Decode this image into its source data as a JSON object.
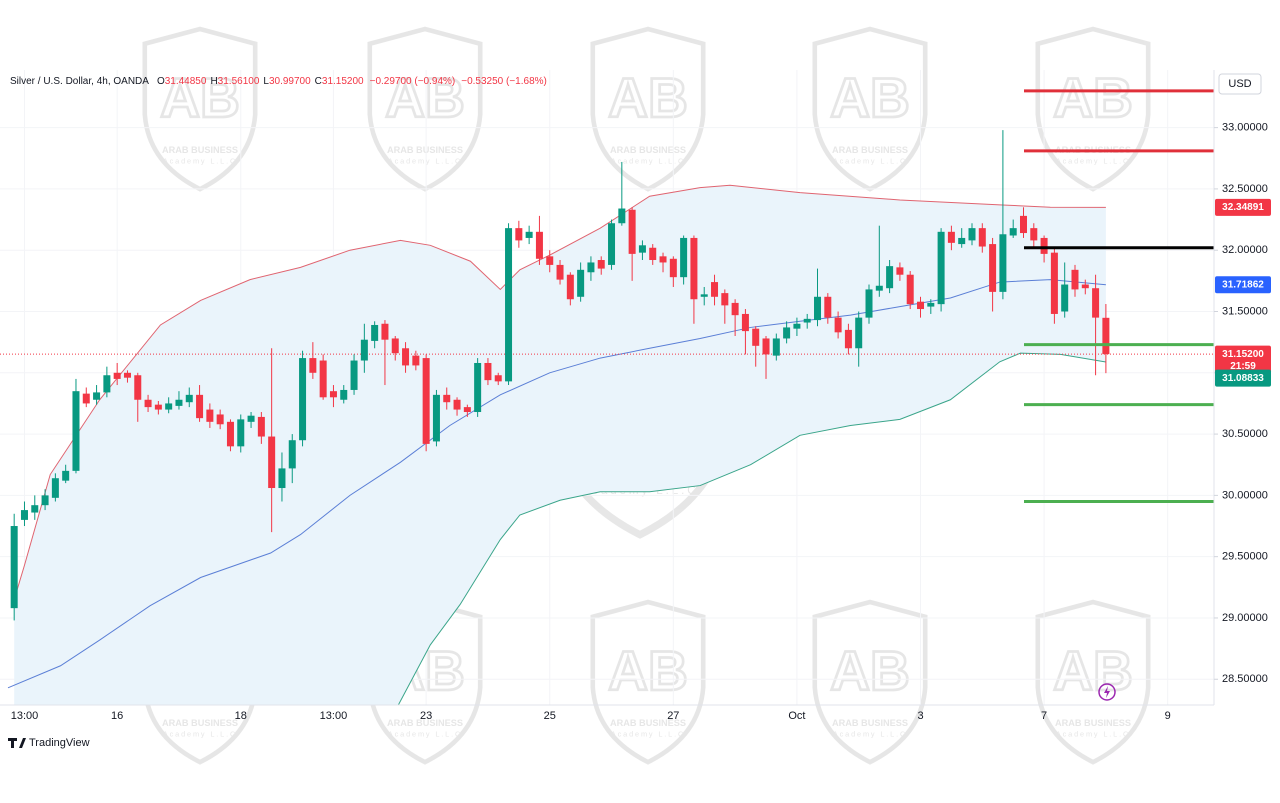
{
  "chart_data": {
    "type": "candlestick",
    "title": "Silver / U.S. Dollar, 4h, OANDA",
    "header_labels": [
      "O",
      "H",
      "L",
      "C"
    ],
    "header_values": [
      "31.44850",
      "31.56100",
      "30.99700",
      "31.15200",
      "−0.29700 (−0.94%)",
      "−0.53250 (−1.68%)"
    ],
    "currency": "USD",
    "branding": "TradingView",
    "watermark": {
      "logo": "AB",
      "name": "ARAB BUSINESS",
      "sub": "Academy L.L.C"
    },
    "up_color": "#089981",
    "down_color": "#f23645",
    "xlim": [
      -0.6,
      116.4
    ],
    "xticks": [
      {
        "value": 1,
        "label": "13:00"
      },
      {
        "value": 10,
        "label": "16"
      },
      {
        "value": 22,
        "label": "18"
      },
      {
        "value": 31,
        "label": "13:00"
      },
      {
        "value": 40,
        "label": "23"
      },
      {
        "value": 52,
        "label": "25"
      },
      {
        "value": 64,
        "label": "27"
      },
      {
        "value": 76,
        "label": "Oct"
      },
      {
        "value": 88,
        "label": "3"
      },
      {
        "value": 100,
        "label": "7"
      },
      {
        "value": 112,
        "label": "9"
      }
    ],
    "ylim": [
      28.29,
      33.47
    ],
    "yticks": [
      {
        "value": 28.5,
        "label": "28.50000"
      },
      {
        "value": 29,
        "label": "29.00000"
      },
      {
        "value": 29.5,
        "label": "29.50000"
      },
      {
        "value": 30,
        "label": "30.00000"
      },
      {
        "value": 30.5,
        "label": "30.50000"
      },
      {
        "value": 31,
        "label": "31.00000"
      },
      {
        "value": 31.5,
        "label": "31.50000"
      },
      {
        "value": 32,
        "label": "32.00000"
      },
      {
        "value": 32.5,
        "label": "32.50000"
      },
      {
        "value": 33,
        "label": "33.00000"
      }
    ],
    "open": [
      29.08,
      29.8,
      29.86,
      29.92,
      29.98,
      30.12,
      30.2,
      30.83,
      30.78,
      30.84,
      31.0,
      31.0,
      30.98,
      30.78,
      30.74,
      30.7,
      30.73,
      30.76,
      30.82,
      30.7,
      30.66,
      30.6,
      30.4,
      30.6,
      30.64,
      30.48,
      30.06,
      30.22,
      30.45,
      31.12,
      31.1,
      30.85,
      30.78,
      30.86,
      31.1,
      31.26,
      31.4,
      31.28,
      31.2,
      31.14,
      31.12,
      30.44,
      30.82,
      30.78,
      30.72,
      30.68,
      31.08,
      30.98,
      30.93,
      32.18,
      32.1,
      32.15,
      31.95,
      31.88,
      31.8,
      31.62,
      31.82,
      31.92,
      31.88,
      32.22,
      32.33,
      31.98,
      32.02,
      31.95,
      31.93,
      31.78,
      32.1,
      31.62,
      31.74,
      31.65,
      31.57,
      31.48,
      31.36,
      31.28,
      31.14,
      31.28,
      31.36,
      31.41,
      31.43,
      31.62,
      31.45,
      31.35,
      31.2,
      31.45,
      31.67,
      31.69,
      31.86,
      31.8,
      31.58,
      31.54,
      31.56,
      32.15,
      32.05,
      32.08,
      32.18,
      32.05,
      31.66,
      32.12,
      32.28,
      32.18,
      32.1,
      31.98,
      31.5,
      31.84,
      31.72,
      31.69,
      31.4485
    ],
    "high": [
      29.85,
      29.95,
      30.0,
      30.05,
      30.18,
      30.25,
      30.95,
      30.88,
      30.9,
      31.05,
      31.08,
      31.02,
      31.0,
      30.82,
      30.77,
      30.8,
      30.85,
      30.88,
      30.9,
      30.75,
      30.7,
      30.62,
      30.66,
      30.68,
      30.68,
      31.2,
      30.35,
      30.5,
      31.18,
      31.25,
      31.15,
      30.9,
      30.9,
      31.15,
      31.4,
      31.42,
      31.43,
      31.3,
      31.25,
      31.18,
      31.15,
      30.86,
      30.88,
      30.8,
      30.74,
      31.12,
      31.12,
      31.0,
      32.22,
      32.24,
      32.2,
      32.28,
      32.0,
      31.92,
      31.82,
      31.9,
      31.95,
      31.95,
      32.25,
      32.72,
      32.35,
      32.08,
      32.05,
      31.98,
      31.95,
      32.12,
      32.12,
      31.7,
      31.8,
      31.68,
      31.6,
      31.52,
      31.38,
      31.3,
      31.32,
      31.42,
      31.45,
      31.48,
      31.85,
      31.65,
      31.5,
      31.4,
      31.5,
      31.72,
      32.2,
      31.92,
      31.9,
      31.83,
      31.62,
      31.6,
      32.18,
      32.2,
      32.18,
      32.22,
      32.22,
      32.1,
      32.98,
      32.25,
      32.35,
      32.22,
      32.12,
      32.02,
      31.9,
      31.88,
      31.76,
      31.8,
      31.561
    ],
    "low": [
      28.98,
      29.75,
      29.8,
      29.88,
      29.95,
      30.1,
      30.18,
      30.72,
      30.74,
      30.8,
      30.9,
      30.92,
      30.6,
      30.68,
      30.66,
      30.67,
      30.7,
      30.72,
      30.6,
      30.55,
      30.54,
      30.36,
      30.35,
      30.55,
      30.42,
      29.7,
      29.95,
      30.1,
      30.4,
      30.95,
      30.78,
      30.72,
      30.75,
      30.82,
      31.0,
      31.2,
      30.9,
      31.1,
      31.0,
      31.02,
      30.36,
      30.4,
      30.7,
      30.65,
      30.64,
      30.64,
      30.9,
      30.9,
      30.9,
      32.02,
      32.05,
      31.88,
      31.82,
      31.72,
      31.55,
      31.58,
      31.75,
      31.8,
      31.84,
      32.2,
      31.75,
      31.92,
      31.88,
      31.82,
      31.7,
      31.72,
      31.4,
      31.55,
      31.55,
      31.4,
      31.3,
      31.15,
      31.05,
      30.95,
      31.1,
      31.24,
      31.3,
      31.36,
      31.38,
      31.4,
      31.28,
      31.15,
      31.05,
      31.4,
      31.62,
      31.65,
      31.75,
      31.52,
      31.45,
      31.48,
      31.5,
      32.0,
      32.02,
      32.04,
      31.98,
      31.5,
      31.6,
      32.1,
      32.1,
      32.02,
      31.9,
      31.4,
      31.45,
      31.62,
      31.64,
      30.98,
      30.997
    ],
    "close": [
      29.75,
      29.88,
      29.92,
      30.0,
      30.14,
      30.2,
      30.85,
      30.75,
      30.84,
      30.98,
      30.95,
      30.96,
      30.78,
      30.72,
      30.7,
      30.75,
      30.78,
      30.82,
      30.63,
      30.6,
      30.58,
      30.4,
      30.62,
      30.65,
      30.48,
      30.06,
      30.22,
      30.45,
      31.12,
      31.0,
      30.8,
      30.8,
      30.86,
      31.1,
      31.27,
      31.39,
      31.27,
      31.16,
      31.06,
      31.06,
      30.42,
      30.82,
      30.76,
      30.7,
      30.68,
      31.08,
      30.94,
      30.93,
      32.18,
      32.08,
      32.15,
      31.93,
      31.88,
      31.76,
      31.6,
      31.84,
      31.9,
      31.85,
      32.22,
      32.34,
      31.97,
      32.04,
      31.92,
      31.9,
      31.78,
      32.1,
      31.6,
      31.64,
      31.62,
      31.55,
      31.47,
      31.34,
      31.22,
      31.15,
      31.28,
      31.37,
      31.4,
      31.44,
      31.62,
      31.45,
      31.33,
      31.2,
      31.45,
      31.68,
      31.71,
      31.87,
      31.8,
      31.56,
      31.52,
      31.57,
      32.15,
      32.06,
      32.1,
      32.18,
      32.03,
      31.66,
      32.13,
      32.18,
      32.14,
      32.08,
      31.97,
      31.48,
      31.72,
      31.68,
      31.69,
      31.45,
      31.152
    ],
    "last_price_label": "31.15200",
    "countdown": "21:59",
    "bands": [
      {
        "color": "#e06470",
        "label_color": "#f23645",
        "x": [
          0,
          1,
          3.5,
          8.3,
          14.2,
          18.1,
          22.9,
          27.8,
          32.6,
          37.5,
          40.4,
          44.3,
          47.2,
          49.1,
          52,
          56.9,
          61.7,
          66.6,
          69.5,
          76.3,
          86,
          95.7,
          100.6,
          106
        ],
        "values": [
          29.15,
          29.43,
          30.17,
          30.78,
          31.39,
          31.59,
          31.76,
          31.86,
          32.0,
          32.08,
          32.04,
          31.91,
          31.68,
          31.84,
          31.96,
          32.18,
          32.44,
          32.51,
          32.53,
          32.47,
          32.41,
          32.37,
          32.35,
          32.34891
        ]
      },
      {
        "color": "#5b7fd6",
        "label_color": "#2962ff",
        "x": [
          -0.6,
          4.5,
          8.3,
          13.2,
          18.1,
          24.9,
          27.8,
          32.6,
          37.5,
          42.3,
          47.2,
          52,
          56.9,
          61.7,
          66.6,
          71.5,
          76.3,
          81.2,
          86,
          90.9,
          95.7,
          100.6,
          106
        ],
        "values": [
          28.43,
          28.61,
          28.82,
          29.1,
          29.33,
          29.53,
          29.68,
          30.0,
          30.27,
          30.57,
          30.82,
          31.0,
          31.12,
          31.2,
          31.28,
          31.37,
          31.42,
          31.47,
          31.54,
          31.61,
          31.74,
          31.76,
          31.71862
        ]
      },
      {
        "color": "#3aa58a",
        "label_color": "#089981",
        "x": [
          37.3,
          40.4,
          43.3,
          47.2,
          49.1,
          53,
          56.9,
          61.7,
          66.6,
          71.5,
          76.3,
          81.2,
          86,
          90.9,
          95.7,
          97.7,
          101.6,
          106
        ],
        "values": [
          28.29,
          28.78,
          29.11,
          29.64,
          29.84,
          29.96,
          30.03,
          30.03,
          30.08,
          30.25,
          30.49,
          30.57,
          30.62,
          30.78,
          31.09,
          31.16,
          31.15,
          31.08833
        ]
      }
    ],
    "band_fill": "#eaf4fb",
    "levels": [
      {
        "value": 33.3,
        "color": "#e0303a"
      },
      {
        "value": 32.81,
        "color": "#e0303a"
      },
      {
        "value": 32.02,
        "color": "#000000"
      },
      {
        "value": 31.23,
        "color": "#4caf50"
      },
      {
        "value": 30.74,
        "color": "#4caf50"
      },
      {
        "value": 29.95,
        "color": "#4caf50"
      }
    ]
  }
}
